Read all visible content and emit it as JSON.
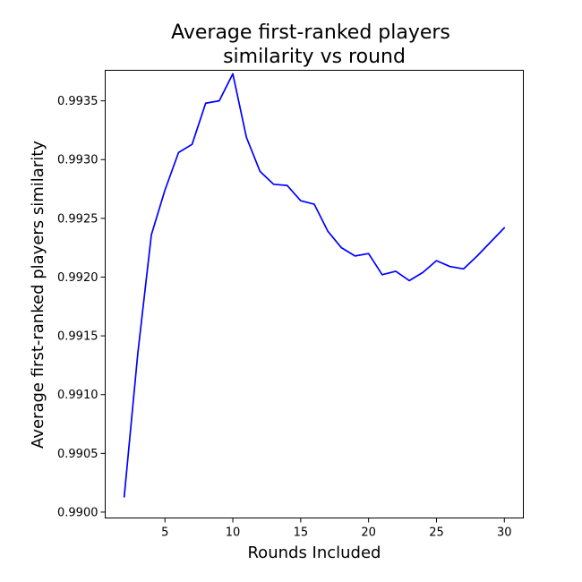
{
  "chart_data": {
    "type": "line",
    "title_lines": [
      "Average first-ranked players",
      "similarity vs round"
    ],
    "xlabel": "Rounds Included",
    "ylabel": "Average first-ranked players similarity",
    "xlim": [
      0.6,
      31.4
    ],
    "ylim": [
      0.98995,
      0.99376
    ],
    "xticks": [
      5,
      10,
      15,
      20,
      25,
      30
    ],
    "yticks": [
      0.99,
      0.9905,
      0.991,
      0.9915,
      0.992,
      0.9925,
      0.993,
      0.9935
    ],
    "ytick_labels": [
      "0.9900",
      "0.9905",
      "0.9910",
      "0.9915",
      "0.9920",
      "0.9925",
      "0.9930",
      "0.9935"
    ],
    "grid": false,
    "series": [
      {
        "color": "#0000ff",
        "x": [
          2,
          3,
          4,
          5,
          6,
          7,
          8,
          9,
          10,
          11,
          12,
          13,
          14,
          15,
          16,
          17,
          18,
          19,
          20,
          21,
          22,
          23,
          24,
          25,
          26,
          27,
          28,
          29,
          30
        ],
        "values": [
          0.99013,
          0.99135,
          0.99236,
          0.99274,
          0.99306,
          0.99313,
          0.99348,
          0.9935,
          0.99373,
          0.99319,
          0.9929,
          0.99279,
          0.99278,
          0.99265,
          0.99262,
          0.99239,
          0.99225,
          0.99218,
          0.9922,
          0.99202,
          0.99205,
          0.99197,
          0.99204,
          0.99214,
          0.99209,
          0.99207,
          0.99218,
          0.9923,
          0.99242
        ]
      }
    ]
  }
}
